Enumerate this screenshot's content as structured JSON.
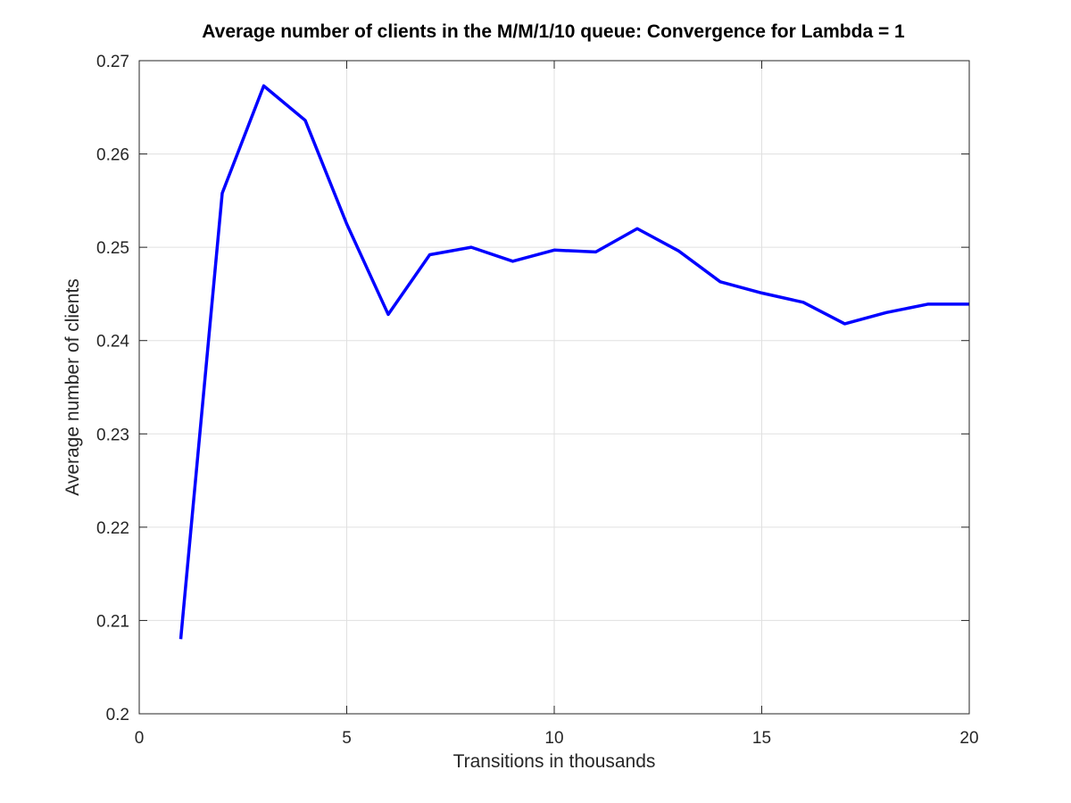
{
  "chart_data": {
    "type": "line",
    "title": "Average number of clients in the M/M/1/10 queue: Convergence for Lambda = 1",
    "xlabel": "Transitions in thousands",
    "ylabel": "Average number of clients",
    "xlim": [
      0,
      20
    ],
    "ylim": [
      0.2,
      0.27
    ],
    "xticks": [
      0,
      5,
      10,
      15,
      20
    ],
    "xtick_labels": [
      "0",
      "5",
      "10",
      "15",
      "20"
    ],
    "yticks": [
      0.2,
      0.21,
      0.22,
      0.23,
      0.24,
      0.25,
      0.26,
      0.27
    ],
    "ytick_labels": [
      "0.2",
      "0.21",
      "0.22",
      "0.23",
      "0.24",
      "0.25",
      "0.26",
      "0.27"
    ],
    "grid": true,
    "box": true,
    "series": [
      {
        "color": "#0000ff",
        "x": [
          1,
          2,
          3,
          4,
          5,
          6,
          7,
          8,
          9,
          10,
          11,
          12,
          13,
          14,
          15,
          16,
          17,
          18,
          19,
          20
        ],
        "y": [
          0.208,
          0.2558,
          0.2673,
          0.2636,
          0.2525,
          0.2428,
          0.2492,
          0.25,
          0.2485,
          0.2497,
          0.2495,
          0.252,
          0.2496,
          0.2463,
          0.2451,
          0.2441,
          0.2418,
          0.243,
          0.2439,
          0.2439
        ]
      }
    ]
  }
}
